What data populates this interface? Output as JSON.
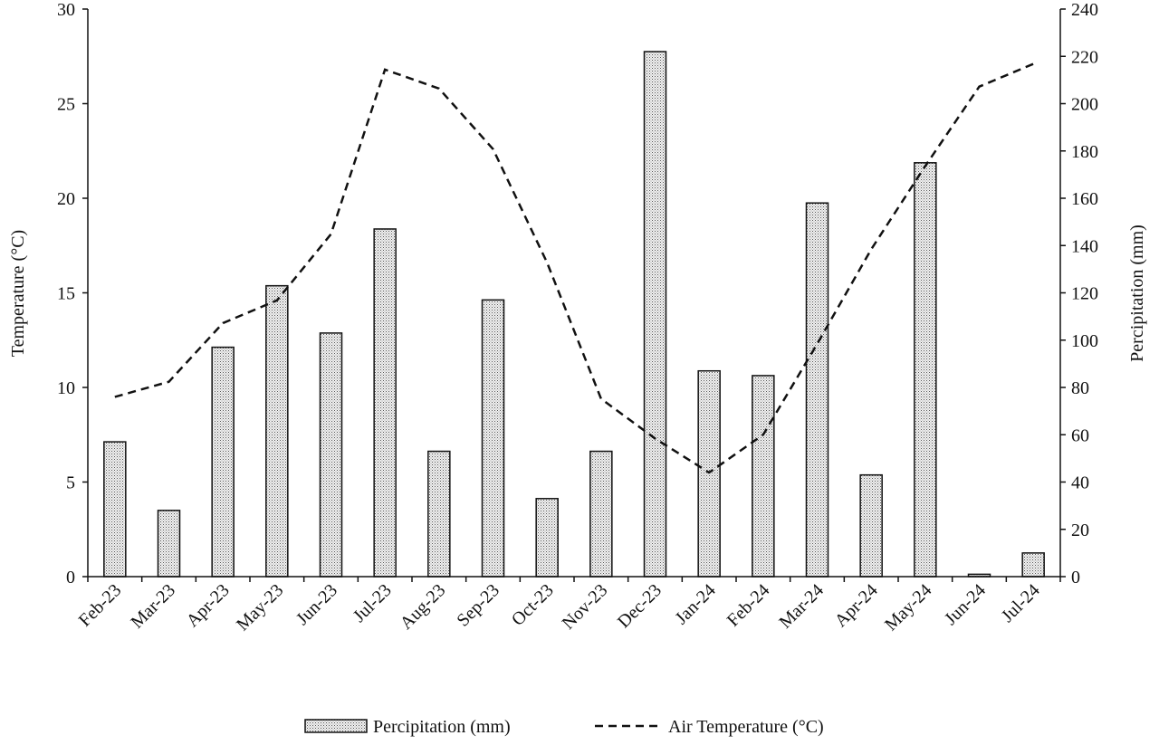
{
  "chart_data": {
    "type": "bar+line",
    "title": "",
    "categories": [
      "Feb-23",
      "Mar-23",
      "Apr-23",
      "May-23",
      "Jun-23",
      "Jul-23",
      "Aug-23",
      "Sep-23",
      "Oct-23",
      "Nov-23",
      "Dec-23",
      "Jan-24",
      "Feb-24",
      "Mar-24",
      "Apr-24",
      "May-24",
      "Jun-24",
      "Jul-24"
    ],
    "series": [
      {
        "name": "Percipitation (mm)",
        "type": "bar",
        "axis": "right",
        "values": [
          57,
          28,
          97,
          123,
          103,
          147,
          53,
          117,
          33,
          53,
          222,
          87,
          85,
          158,
          43,
          175,
          1,
          10
        ]
      },
      {
        "name": "Air Temperature (°C)",
        "type": "line",
        "style": "dashed",
        "axis": "left",
        "values": [
          9.5,
          10.3,
          13.4,
          14.6,
          18.1,
          26.8,
          25.8,
          22.6,
          16.6,
          9.4,
          7.3,
          5.5,
          7.5,
          12.3,
          17.3,
          21.7,
          25.9,
          27.1
        ]
      }
    ],
    "ylabel": "Temperature (°C)",
    "ylabel_right": "Percipitation (mm)",
    "ylim": [
      0,
      30
    ],
    "ylim_right": [
      0,
      240
    ],
    "yticks": [
      "0",
      "5",
      "10",
      "15",
      "20",
      "25",
      "30"
    ],
    "yticks_right": [
      "0",
      "20",
      "40",
      "60",
      "80",
      "100",
      "120",
      "140",
      "160",
      "180",
      "200",
      "220",
      "240"
    ],
    "grid": false,
    "legend": {
      "placement": "bottom",
      "entries": [
        "Percipitation (mm)",
        "Air Temperature (°C)"
      ]
    }
  }
}
